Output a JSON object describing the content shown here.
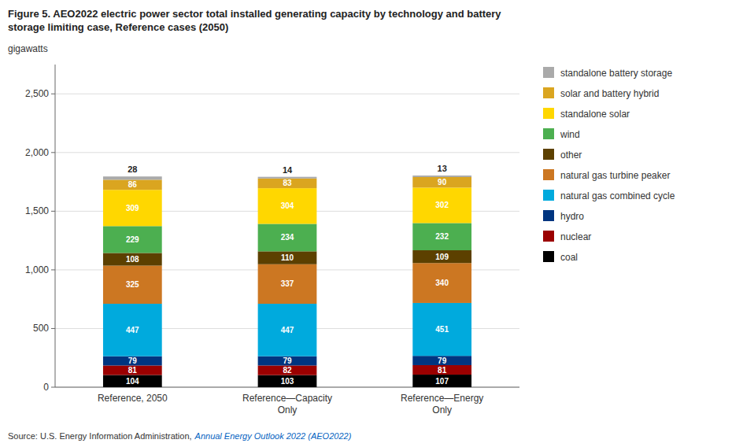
{
  "chart_data": {
    "type": "bar",
    "stacked": true,
    "title": "Figure 5. AEO2022 electric power sector total installed generating capacity by technology and battery\nstorage limiting case, Reference cases (2050)",
    "y_label": "gigawatts",
    "annotations": [
      "Source: U.S. Energy Information Administration,",
      "Annual Energy Outlook 2022 (AEO2022)"
    ],
    "categories": [
      "Reference, 2050",
      "Reference—Capacity\nOnly",
      "Reference—Energy\nOnly"
    ],
    "series": [
      {
        "name": "coal",
        "color": "#000000",
        "values": [
          104,
          103,
          107
        ]
      },
      {
        "name": "nuclear",
        "color": "#9B0000",
        "values": [
          81,
          82,
          81
        ]
      },
      {
        "name": "hydro",
        "color": "#003580",
        "values": [
          79,
          79,
          79
        ]
      },
      {
        "name": "natural gas combined cycle",
        "color": "#00AADD",
        "values": [
          447,
          447,
          451
        ]
      },
      {
        "name": "natural gas turbine peaker",
        "color": "#CC7722",
        "values": [
          325,
          337,
          340
        ]
      },
      {
        "name": "other",
        "color": "#5C4000",
        "values": [
          108,
          110,
          109
        ]
      },
      {
        "name": "wind",
        "color": "#4CAF50",
        "values": [
          229,
          234,
          232
        ]
      },
      {
        "name": "standalone solar",
        "color": "#FFD700",
        "values": [
          309,
          304,
          302
        ]
      },
      {
        "name": "solar and battery hybrid",
        "color": "#DAA520",
        "values": [
          86,
          83,
          90
        ]
      },
      {
        "name": "standalone battery storage",
        "color": "#AAAAAA",
        "values": [
          28,
          14,
          13
        ]
      }
    ],
    "ylim": [
      0,
      2750
    ],
    "yticks": [
      0,
      500,
      {
        "value": 1000,
        "label": "1,000"
      },
      {
        "value": 1500,
        "label": "1,500"
      },
      {
        "value": 2000,
        "label": "2,000"
      },
      {
        "value": 2500,
        "label": "2,500"
      }
    ],
    "grid": true,
    "legend": "right",
    "data_labels": true
  }
}
